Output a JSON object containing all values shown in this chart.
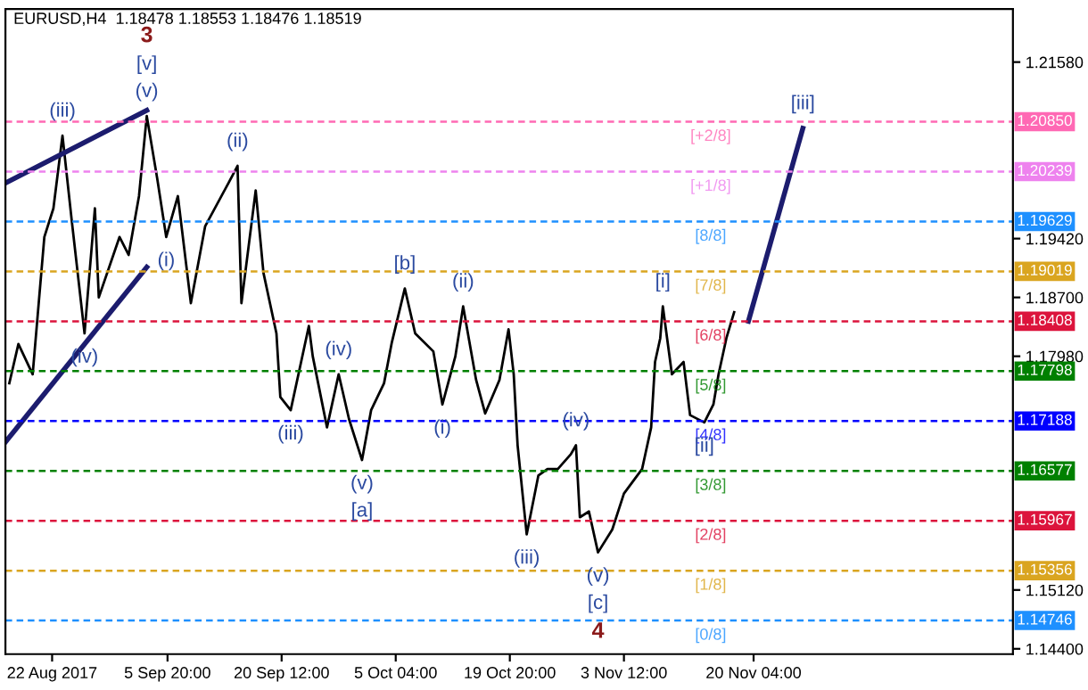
{
  "chart_data": {
    "type": "line",
    "title": "EURUSD,H4  1.18478 1.18553 1.18476 1.18519",
    "xlim": [
      "2017-08-16T00:00",
      "2017-12-23T12:00"
    ],
    "ylim": [
      1.14335,
      1.2223
    ],
    "xticks": [
      {
        "value": "2017-08-22T00:00",
        "label": "22 Aug 2017"
      },
      {
        "value": "2017-09-05T20:00",
        "label": "5 Sep 20:00"
      },
      {
        "value": "2017-09-20T12:00",
        "label": "20 Sep 12:00"
      },
      {
        "value": "2017-10-05T04:00",
        "label": "5 Oct 04:00"
      },
      {
        "value": "2017-10-19T20:00",
        "label": "19 Oct 20:00"
      },
      {
        "value": "2017-11-03T12:00",
        "label": "3 Nov 12:00"
      },
      {
        "value": "2017-11-20T04:00",
        "label": "20 Nov 04:00"
      }
    ],
    "yticks": [
      {
        "value": 1.144,
        "label": "1.14400"
      },
      {
        "value": 1.1512,
        "label": "1.15120"
      },
      {
        "value": 1.1798,
        "label": "1.17980"
      },
      {
        "value": 1.187,
        "label": "1.18700"
      },
      {
        "value": 1.1942,
        "label": "1.19420"
      },
      {
        "value": 1.2158,
        "label": "1.21580"
      }
    ],
    "grid": false,
    "legend": false,
    "series": [
      {
        "color": "#000000",
        "x": [
          "2017-08-16T12:00",
          "2017-08-17T16:00",
          "2017-08-19T12:00",
          "2017-08-21T00:00",
          "2017-08-22T04:00",
          "2017-08-23T08:00",
          "2017-08-24T12:00",
          "2017-08-26T04:00",
          "2017-08-27T12:00",
          "2017-08-28T00:00",
          "2017-08-30T16:00",
          "2017-08-31T20:00",
          "2017-09-02T04:00",
          "2017-09-03T04:00",
          "2017-09-04T12:00",
          "2017-09-05T16:00",
          "2017-09-07T04:00",
          "2017-09-08T20:00",
          "2017-09-10T16:00",
          "2017-09-13T16:00",
          "2017-09-14T20:00",
          "2017-09-15T08:00",
          "2017-09-17T04:00",
          "2017-09-18T04:00",
          "2017-09-19T20:00",
          "2017-09-20T08:00",
          "2017-09-21T16:00",
          "2017-09-24T00:00",
          "2017-09-24T12:00",
          "2017-09-26T08:00",
          "2017-09-27T20:00",
          "2017-09-29T04:00",
          "2017-09-30T20:00",
          "2017-10-02T00:00",
          "2017-10-03T16:00",
          "2017-10-04T16:00",
          "2017-10-06T08:00",
          "2017-10-07T16:00",
          "2017-10-10T00:00",
          "2017-10-11T04:00",
          "2017-10-12T20:00",
          "2017-10-13T20:00",
          "2017-10-15T12:00",
          "2017-10-16T16:00",
          "2017-10-18T12:00",
          "2017-10-19T16:00",
          "2017-10-20T08:00",
          "2017-10-20T20:00",
          "2017-10-22T00:00",
          "2017-10-23T12:00",
          "2017-10-24T16:00",
          "2017-10-26T00:00",
          "2017-10-27T16:00",
          "2017-10-28T08:00",
          "2017-10-28T20:00",
          "2017-10-30T00:00",
          "2017-10-31T04:00",
          "2017-11-02T00:00",
          "2017-11-03T12:00",
          "2017-11-05T20:00",
          "2017-11-07T00:00",
          "2017-11-07T12:00",
          "2017-11-08T04:00",
          "2017-11-08T12:00",
          "2017-11-09T16:00",
          "2017-11-11T04:00",
          "2017-11-12T00:00",
          "2017-11-13T20:00",
          "2017-11-15T00:00",
          "2017-11-15T16:00",
          "2017-11-16T16:00",
          "2017-11-17T16:00"
        ],
        "values": [
          1.1765,
          1.1813,
          1.1776,
          1.1944,
          1.1979,
          1.2068,
          1.1966,
          1.1826,
          1.1979,
          1.187,
          1.1944,
          1.1922,
          1.1994,
          1.2092,
          1.2016,
          1.1944,
          1.1994,
          1.1863,
          1.1957,
          1.201,
          1.2031,
          1.1863,
          1.2001,
          1.19,
          1.1826,
          1.1748,
          1.1732,
          1.1835,
          1.1798,
          1.1711,
          1.1776,
          1.1721,
          1.1671,
          1.1732,
          1.1765,
          1.1815,
          1.1881,
          1.1826,
          1.1804,
          1.1739,
          1.1798,
          1.1859,
          1.1769,
          1.1728,
          1.1769,
          1.1831,
          1.1776,
          1.1689,
          1.158,
          1.1652,
          1.166,
          1.166,
          1.1678,
          1.1689,
          1.1601,
          1.1608,
          1.1558,
          1.1586,
          1.163,
          1.166,
          1.1711,
          1.1791,
          1.182,
          1.1859,
          1.1776,
          1.1791,
          1.1726,
          1.1717,
          1.1739,
          1.1776,
          1.182,
          1.1852
        ]
      },
      {
        "color": "#1c1c6e",
        "x": [
          "2017-08-16T00:00",
          "2017-09-03T04:00"
        ],
        "values": [
          1.201,
          1.2099
        ]
      },
      {
        "color": "#1c1c6e",
        "x": [
          "2017-08-16T00:00",
          "2017-09-03T04:00"
        ],
        "values": [
          1.1693,
          1.1907
        ]
      },
      {
        "color": "#1c1c6e",
        "x": [
          "2017-11-19T12:00",
          "2017-11-26T12:00"
        ],
        "values": [
          1.1841,
          1.2077
        ]
      }
    ],
    "ref_lines": [
      {
        "axis": "y",
        "value": 1.2085,
        "label": "1.20850",
        "color": "#ff69b4",
        "line_style": "dashed"
      },
      {
        "axis": "y",
        "value": 1.20239,
        "label": "1.20239",
        "color": "#ee82ee",
        "line_style": "dashed"
      },
      {
        "axis": "y",
        "value": 1.19629,
        "label": "1.19629",
        "color": "#1e90ff",
        "line_style": "dashed"
      },
      {
        "axis": "y",
        "value": 1.19019,
        "label": "1.19019",
        "color": "#daa520",
        "line_style": "dashed"
      },
      {
        "axis": "y",
        "value": 1.18408,
        "label": "1.18408",
        "color": "#dc143c",
        "line_style": "dashed"
      },
      {
        "axis": "y",
        "value": 1.17798,
        "label": "1.17798",
        "color": "#008000",
        "line_style": "dashed"
      },
      {
        "axis": "y",
        "value": 1.17188,
        "label": "1.17188",
        "color": "#0000ff",
        "line_style": "dashed"
      },
      {
        "axis": "y",
        "value": 1.16577,
        "label": "1.16577",
        "color": "#008000",
        "line_style": "dashed"
      },
      {
        "axis": "y",
        "value": 1.15967,
        "label": "1.15967",
        "color": "#dc143c",
        "line_style": "dashed"
      },
      {
        "axis": "y",
        "value": 1.15356,
        "label": "1.15356",
        "color": "#daa520",
        "line_style": "dashed"
      },
      {
        "axis": "y",
        "value": 1.14746,
        "label": "1.14746",
        "color": "#1e90ff",
        "line_style": "dashed"
      }
    ],
    "annotations": [
      "[+2/8]",
      "[+1/8]",
      "[8/8]",
      "[7/8]",
      "[6/8]",
      "[5/8]",
      "[4/8]",
      "[3/8]",
      "[2/8]",
      "[1/8]",
      "[0/8]",
      {
        "text": "(v)",
        "x": "2017-09-03T04:00",
        "y": 1.2092
      },
      {
        "text": "[v]",
        "x": "2017-09-03T04:00",
        "y": 1.2092
      },
      "3",
      {
        "text": "(iii)",
        "x": "2017-08-23T08:00",
        "y": 1.2068
      },
      {
        "text": "(ii)",
        "x": "2017-09-14T20:00",
        "y": 1.2031
      },
      {
        "text": "(i)",
        "x": "2017-09-05T16:00",
        "y": 1.1944
      },
      {
        "text": "(iv)",
        "x": "2017-08-26T04:00",
        "y": 1.1826
      },
      {
        "text": "(iii)",
        "x": "2017-09-21T16:00",
        "y": 1.1732
      },
      {
        "text": "(iv)",
        "x": "2017-09-27T20:00",
        "y": 1.1776
      },
      {
        "text": "(v)",
        "x": "2017-09-30T20:00",
        "y": 1.1671
      },
      {
        "text": "[a]",
        "x": "2017-09-30T20:00",
        "y": 1.1671
      },
      {
        "text": "[b]",
        "x": "2017-10-06T08:00",
        "y": 1.1881
      },
      {
        "text": "(i)",
        "x": "2017-10-11T04:00",
        "y": 1.1739
      },
      {
        "text": "(ii)",
        "x": "2017-10-13T20:00",
        "y": 1.1859
      },
      {
        "text": "(iii)",
        "x": "2017-10-22T00:00",
        "y": 1.158
      },
      {
        "text": "(iv)",
        "x": "2017-10-28T08:00",
        "y": 1.1689
      },
      {
        "text": "(v)",
        "x": "2017-10-31T04:00",
        "y": 1.1558
      },
      {
        "text": "[c]",
        "x": "2017-10-31T04:00",
        "y": 1.1558
      },
      "4",
      {
        "text": "[i]",
        "x": "2017-11-08T12:00",
        "y": 1.1859
      },
      {
        "text": "[ii]",
        "x": "2017-11-13T20:00",
        "y": 1.1717
      },
      {
        "text": "[iii]",
        "x": "2017-11-26T12:00",
        "y": 1.2077
      }
    ]
  }
}
